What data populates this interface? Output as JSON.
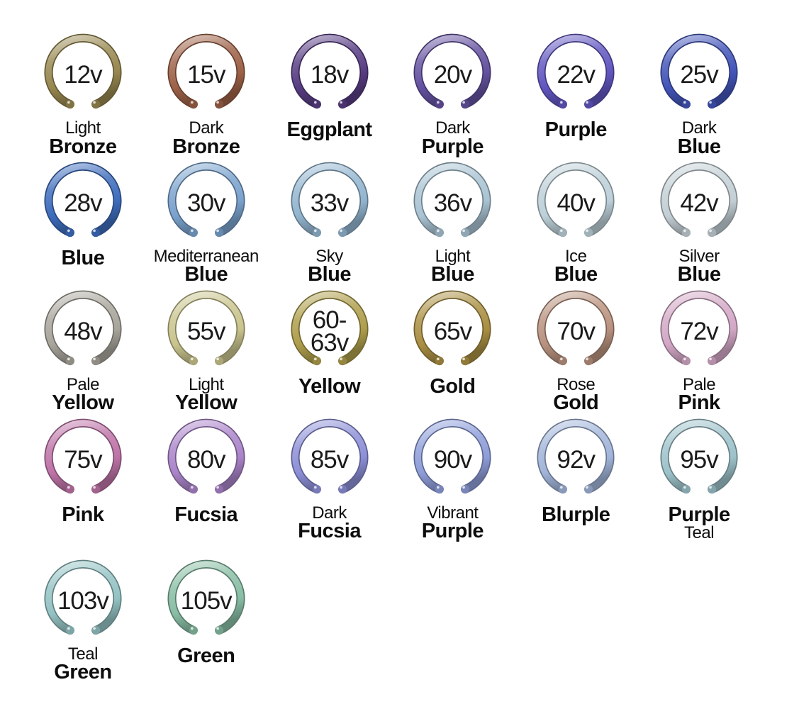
{
  "page": {
    "background_color": "#ffffff",
    "text_color": "#0d0d0d"
  },
  "rings": [
    {
      "voltage": "12v",
      "color": "#97874f",
      "label_lines": [
        {
          "text": "Light",
          "bold": false
        },
        {
          "text": "Bronze",
          "bold": true
        }
      ]
    },
    {
      "voltage": "15v",
      "color": "#9d6147",
      "label_lines": [
        {
          "text": "Dark",
          "bold": false
        },
        {
          "text": "Bronze",
          "bold": true
        }
      ]
    },
    {
      "voltage": "18v",
      "color": "#573c82",
      "label_lines": [
        {
          "text": "Eggplant",
          "bold": true
        }
      ]
    },
    {
      "voltage": "20v",
      "color": "#6451a0",
      "label_lines": [
        {
          "text": "Dark",
          "bold": false
        },
        {
          "text": "Purple",
          "bold": true
        }
      ]
    },
    {
      "voltage": "22v",
      "color": "#6156c0",
      "label_lines": [
        {
          "text": "Purple",
          "bold": true
        }
      ]
    },
    {
      "voltage": "25v",
      "color": "#4254b8",
      "label_lines": [
        {
          "text": "Dark",
          "bold": false
        },
        {
          "text": "Blue",
          "bold": true
        }
      ]
    },
    {
      "voltage": "28v",
      "color": "#3d6cbc",
      "label_lines": [
        {
          "text": "Blue",
          "bold": true
        }
      ]
    },
    {
      "voltage": "30v",
      "color": "#7aa2cd",
      "label_lines": [
        {
          "text": "Mediterranean",
          "bold": false
        },
        {
          "text": "Blue",
          "bold": true
        }
      ]
    },
    {
      "voltage": "33v",
      "color": "#92b5cf",
      "label_lines": [
        {
          "text": "Sky",
          "bold": false
        },
        {
          "text": "Blue",
          "bold": true
        }
      ]
    },
    {
      "voltage": "36v",
      "color": "#a9c3d3",
      "label_lines": [
        {
          "text": "Light",
          "bold": false
        },
        {
          "text": "Blue",
          "bold": true
        }
      ]
    },
    {
      "voltage": "40v",
      "color": "#bdd0d8",
      "label_lines": [
        {
          "text": "Ice",
          "bold": false
        },
        {
          "text": "Blue",
          "bold": true
        }
      ]
    },
    {
      "voltage": "42v",
      "color": "#c3cfd5",
      "label_lines": [
        {
          "text": "Silver",
          "bold": false
        },
        {
          "text": "Blue",
          "bold": true
        }
      ]
    },
    {
      "voltage": "48v",
      "color": "#a8a59b",
      "label_lines": [
        {
          "text": "Pale",
          "bold": false
        },
        {
          "text": "Yellow",
          "bold": true
        }
      ]
    },
    {
      "voltage": "55v",
      "color": "#c9c48d",
      "label_lines": [
        {
          "text": "Light",
          "bold": false
        },
        {
          "text": "Yellow",
          "bold": true
        }
      ]
    },
    {
      "voltage": "60-\n63v",
      "color": "#ae9e4b",
      "label_lines": [
        {
          "text": "Yellow",
          "bold": true
        }
      ]
    },
    {
      "voltage": "65v",
      "color": "#aa8f42",
      "label_lines": [
        {
          "text": "Gold",
          "bold": true
        }
      ]
    },
    {
      "voltage": "70v",
      "color": "#b9927f",
      "label_lines": [
        {
          "text": "Rose",
          "bold": false
        },
        {
          "text": "Gold",
          "bold": true
        }
      ]
    },
    {
      "voltage": "72v",
      "color": "#d3a8c6",
      "label_lines": [
        {
          "text": "Pale",
          "bold": false
        },
        {
          "text": "Pink",
          "bold": true
        }
      ]
    },
    {
      "voltage": "75v",
      "color": "#be73a7",
      "label_lines": [
        {
          "text": "Pink",
          "bold": true
        }
      ]
    },
    {
      "voltage": "80v",
      "color": "#aa84c9",
      "label_lines": [
        {
          "text": "Fucsia",
          "bold": true
        }
      ]
    },
    {
      "voltage": "85v",
      "color": "#8c8fd7",
      "label_lines": [
        {
          "text": "Dark",
          "bold": false
        },
        {
          "text": "Fucsia",
          "bold": true
        }
      ]
    },
    {
      "voltage": "90v",
      "color": "#8e9dd9",
      "label_lines": [
        {
          "text": "Vibrant",
          "bold": false
        },
        {
          "text": "Purple",
          "bold": true
        }
      ]
    },
    {
      "voltage": "92v",
      "color": "#a1b4d9",
      "label_lines": [
        {
          "text": "Blurple",
          "bold": true
        }
      ]
    },
    {
      "voltage": "95v",
      "color": "#9dc2ca",
      "label_lines": [
        {
          "text": "Purple",
          "bold": true
        },
        {
          "text": "Teal",
          "bold": false
        }
      ]
    },
    {
      "voltage": "103v",
      "color": "#94c2c3",
      "label_lines": [
        {
          "text": "Teal",
          "bold": false
        },
        {
          "text": "Green",
          "bold": true
        }
      ]
    },
    {
      "voltage": "105v",
      "color": "#88bda4",
      "label_lines": [
        {
          "text": "Green",
          "bold": true
        }
      ]
    }
  ]
}
